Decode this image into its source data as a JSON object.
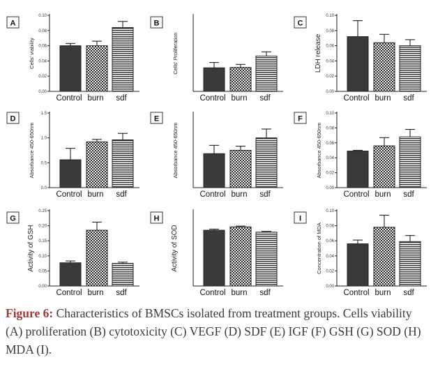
{
  "colors": {
    "bar_fill_control": "#3a3a3a",
    "bar_fill_burn": "checkerboard",
    "bar_fill_sdf": "horizontal-stripes",
    "caption_label": "#a03a3a",
    "caption_text": "#3a3a3a"
  },
  "chart_data": [
    {
      "panel": "A",
      "type": "bar",
      "ylabel": "Cells' viability",
      "categories": [
        "Control",
        "burn",
        "sdf"
      ],
      "values": [
        0.06,
        0.06,
        0.084
      ],
      "errors": [
        0.003,
        0.006,
        0.008
      ],
      "ylim": [
        0,
        0.1
      ],
      "yticks": [
        "0.00",
        "0.02",
        "0.04",
        "0.06",
        "0.08",
        "0.10"
      ]
    },
    {
      "panel": "B",
      "type": "bar",
      "ylabel": "Cells' Proliferation",
      "categories": [
        "Control",
        "burn",
        "sdf"
      ],
      "values": [
        0.62,
        0.63,
        0.93
      ],
      "errors": [
        0.14,
        0.08,
        0.11
      ],
      "ylim": [
        0,
        2.0
      ],
      "yticks": []
    },
    {
      "panel": "C",
      "type": "bar",
      "ylabel": "LDH release",
      "categories": [
        "Control",
        "burn",
        "sdf"
      ],
      "values": [
        0.072,
        0.064,
        0.06
      ],
      "errors": [
        0.021,
        0.011,
        0.008
      ],
      "ylim": [
        0,
        0.1
      ],
      "yticks": [
        "0.00",
        "0.02",
        "0.04",
        "0.06",
        "0.08",
        "0.10"
      ]
    },
    {
      "panel": "D",
      "type": "bar",
      "ylabel": "Absorbance 450-650nm",
      "categories": [
        "Control",
        "burn",
        "sdf"
      ],
      "values": [
        0.56,
        0.92,
        0.96
      ],
      "errors": [
        0.23,
        0.05,
        0.13
      ],
      "ylim": [
        0,
        1.5
      ],
      "yticks": [
        "0.0",
        "0.5",
        "1.0",
        "1.5"
      ]
    },
    {
      "panel": "E",
      "type": "bar",
      "ylabel": "Absorbance 450-650nm",
      "categories": [
        "Control",
        "burn",
        "sdf"
      ],
      "values": [
        1.23,
        1.35,
        1.8
      ],
      "errors": [
        0.3,
        0.15,
        0.32
      ],
      "ylim": [
        0,
        2.7
      ],
      "yticks": []
    },
    {
      "panel": "F",
      "type": "bar",
      "ylabel": "Absorbance 450-650nm",
      "categories": [
        "Control",
        "burn",
        "sdf"
      ],
      "values": [
        0.049,
        0.056,
        0.068
      ],
      "errors": [
        0.001,
        0.011,
        0.01
      ],
      "ylim": [
        0,
        0.1
      ],
      "yticks": [
        "0.00",
        "0.02",
        "0.04",
        "0.06",
        "0.08",
        "0.10"
      ]
    },
    {
      "panel": "G",
      "type": "bar",
      "ylabel": "Activity of GSH",
      "categories": [
        "Control",
        "burn",
        "sdf"
      ],
      "values": [
        0.077,
        0.185,
        0.075
      ],
      "errors": [
        0.006,
        0.027,
        0.004
      ],
      "ylim": [
        0,
        0.25
      ],
      "yticks": [
        "0.00",
        "0.05",
        "0.10",
        "0.15",
        "0.20",
        "0.25"
      ]
    },
    {
      "panel": "H",
      "type": "bar",
      "ylabel": "Activity of SOD",
      "categories": [
        "Control",
        "burn",
        "sdf"
      ],
      "values": [
        0.148,
        0.157,
        0.143
      ],
      "errors": [
        0.003,
        0.002,
        0.002
      ],
      "ylim": [
        0,
        0.2
      ],
      "yticks": []
    },
    {
      "panel": "I",
      "type": "bar",
      "ylabel": "Concentration of MDA",
      "categories": [
        "Control",
        "burn",
        "sdf"
      ],
      "values": [
        0.056,
        0.078,
        0.059
      ],
      "errors": [
        0.005,
        0.016,
        0.008
      ],
      "ylim": [
        0,
        0.1
      ],
      "yticks": [
        "0.00",
        "0.02",
        "0.04",
        "0.06",
        "0.08",
        "0.10"
      ]
    }
  ],
  "caption": {
    "label": "Figure 6:",
    "text": " Characteristics of BMSCs isolated from treatment groups. Cells viability (A) proliferation (B) cytotoxicity (C) VEGF (D) SDF (E) IGF (F) GSH (G) SOD (H) MDA (I)."
  }
}
